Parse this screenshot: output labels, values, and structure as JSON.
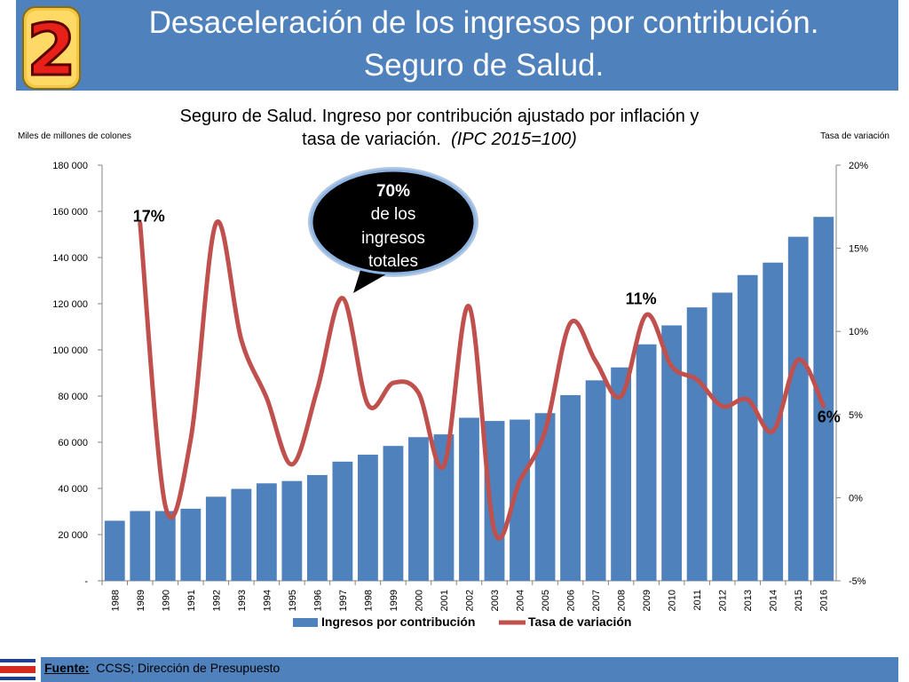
{
  "header": {
    "badge_number": "2",
    "title_line1": "Desaceleración de los ingresos por contribución.",
    "title_line2": "Seguro de Salud."
  },
  "chart_data": {
    "type": "bar+line",
    "title_line1": "Seguro de Salud.  Ingreso por contribución ajustado por inflación y",
    "title_line2": "tasa de variación.",
    "title_italic": "(IPC 2015=100)",
    "ylabel_left": "Miles de millones de colones",
    "ylabel_right": "Tasa de variación",
    "ylim_left": [
      0,
      180000
    ],
    "ylim_right": [
      -5,
      20
    ],
    "y_left_ticks": [
      "-",
      "20 000",
      "40 000",
      "60 000",
      "80 000",
      "100 000",
      "120 000",
      "140 000",
      "160 000",
      "180 000"
    ],
    "y_right_ticks": [
      "-5%",
      "0%",
      "5%",
      "10%",
      "15%",
      "20%"
    ],
    "categories": [
      "1988",
      "1989",
      "1990",
      "1991",
      "1992",
      "1993",
      "1994",
      "1995",
      "1996",
      "1997",
      "1998",
      "1999",
      "2000",
      "2001",
      "2002",
      "2003",
      "2004",
      "2005",
      "2006",
      "2007",
      "2008",
      "2009",
      "2010",
      "2011",
      "2012",
      "2013",
      "2014",
      "2015",
      "2016"
    ],
    "series": [
      {
        "name": "Ingresos por contribución",
        "type": "bar",
        "color": "#4f81bd",
        "values": [
          26000,
          30200,
          30200,
          31200,
          36400,
          39800,
          42200,
          43200,
          45800,
          51600,
          54600,
          58400,
          62200,
          63400,
          70600,
          69200,
          69800,
          72600,
          80400,
          86800,
          92400,
          102400,
          110600,
          118400,
          124800,
          132400,
          137800,
          149000,
          157600
        ]
      },
      {
        "name": "Tasa de variación",
        "type": "line",
        "color": "#c0504d",
        "values": [
          null,
          16.5,
          -0.5,
          3.5,
          16.5,
          9.5,
          6.0,
          2.0,
          6.5,
          12.0,
          5.6,
          6.9,
          6.3,
          1.9,
          11.5,
          -2.0,
          1.0,
          4.0,
          10.5,
          8.2,
          6.1,
          11.0,
          7.9,
          7.1,
          5.5,
          5.9,
          4.0,
          8.3,
          5.5
        ]
      }
    ],
    "annotations": [
      {
        "label": "17%",
        "year": "1989"
      },
      {
        "label": "11%",
        "year": "2009"
      },
      {
        "label": "6%",
        "year": "2016"
      }
    ],
    "callout": {
      "pct": "70%",
      "line2": "de los",
      "line3": "ingresos",
      "line4": "totales"
    }
  },
  "footer": {
    "source_label": "Fuente:",
    "source_text": "CCSS; Dirección de Presupuesto"
  }
}
